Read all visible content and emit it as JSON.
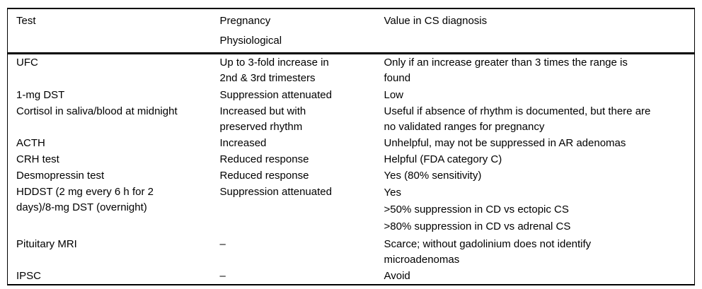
{
  "table": {
    "columns": [
      {
        "label": "Test"
      },
      {
        "label": "Pregnancy\nPhysiological"
      },
      {
        "label": "Value in CS diagnosis"
      }
    ],
    "rows": [
      {
        "test": "UFC",
        "pregnancy": "Up to 3-fold increase in\n2nd & 3rd trimesters",
        "value": "Only if an increase greater than 3 times the range is\nfound"
      },
      {
        "test": "1-mg DST",
        "pregnancy": "Suppression attenuated",
        "value": "Low"
      },
      {
        "test": "Cortisol in saliva/blood at midnight",
        "pregnancy": "Increased but with\npreserved rhythm",
        "value": "Useful if absence of rhythm is documented, but there are\nno validated ranges for pregnancy"
      },
      {
        "test": "ACTH",
        "pregnancy": "Increased",
        "value": "Unhelpful, may not be suppressed in AR adenomas"
      },
      {
        "test": "CRH test",
        "pregnancy": "Reduced response",
        "value": "Helpful (FDA category C)"
      },
      {
        "test": "Desmopressin test",
        "pregnancy": "Reduced response",
        "value": "Yes (80% sensitivity)"
      },
      {
        "test": "HDDST (2 mg every 6 h for 2\ndays)/8-mg DST (overnight)",
        "pregnancy": "Suppression attenuated",
        "value": "Yes\n>50% suppression in CD vs ectopic CS\n>80% suppression in CD vs adrenal CS"
      },
      {
        "test": "Pituitary MRI",
        "pregnancy": "–",
        "value": "Scarce; without gadolinium does not identify\nmicroadenomas"
      },
      {
        "test": "IPSC",
        "pregnancy": "–",
        "value": "Avoid"
      }
    ]
  }
}
